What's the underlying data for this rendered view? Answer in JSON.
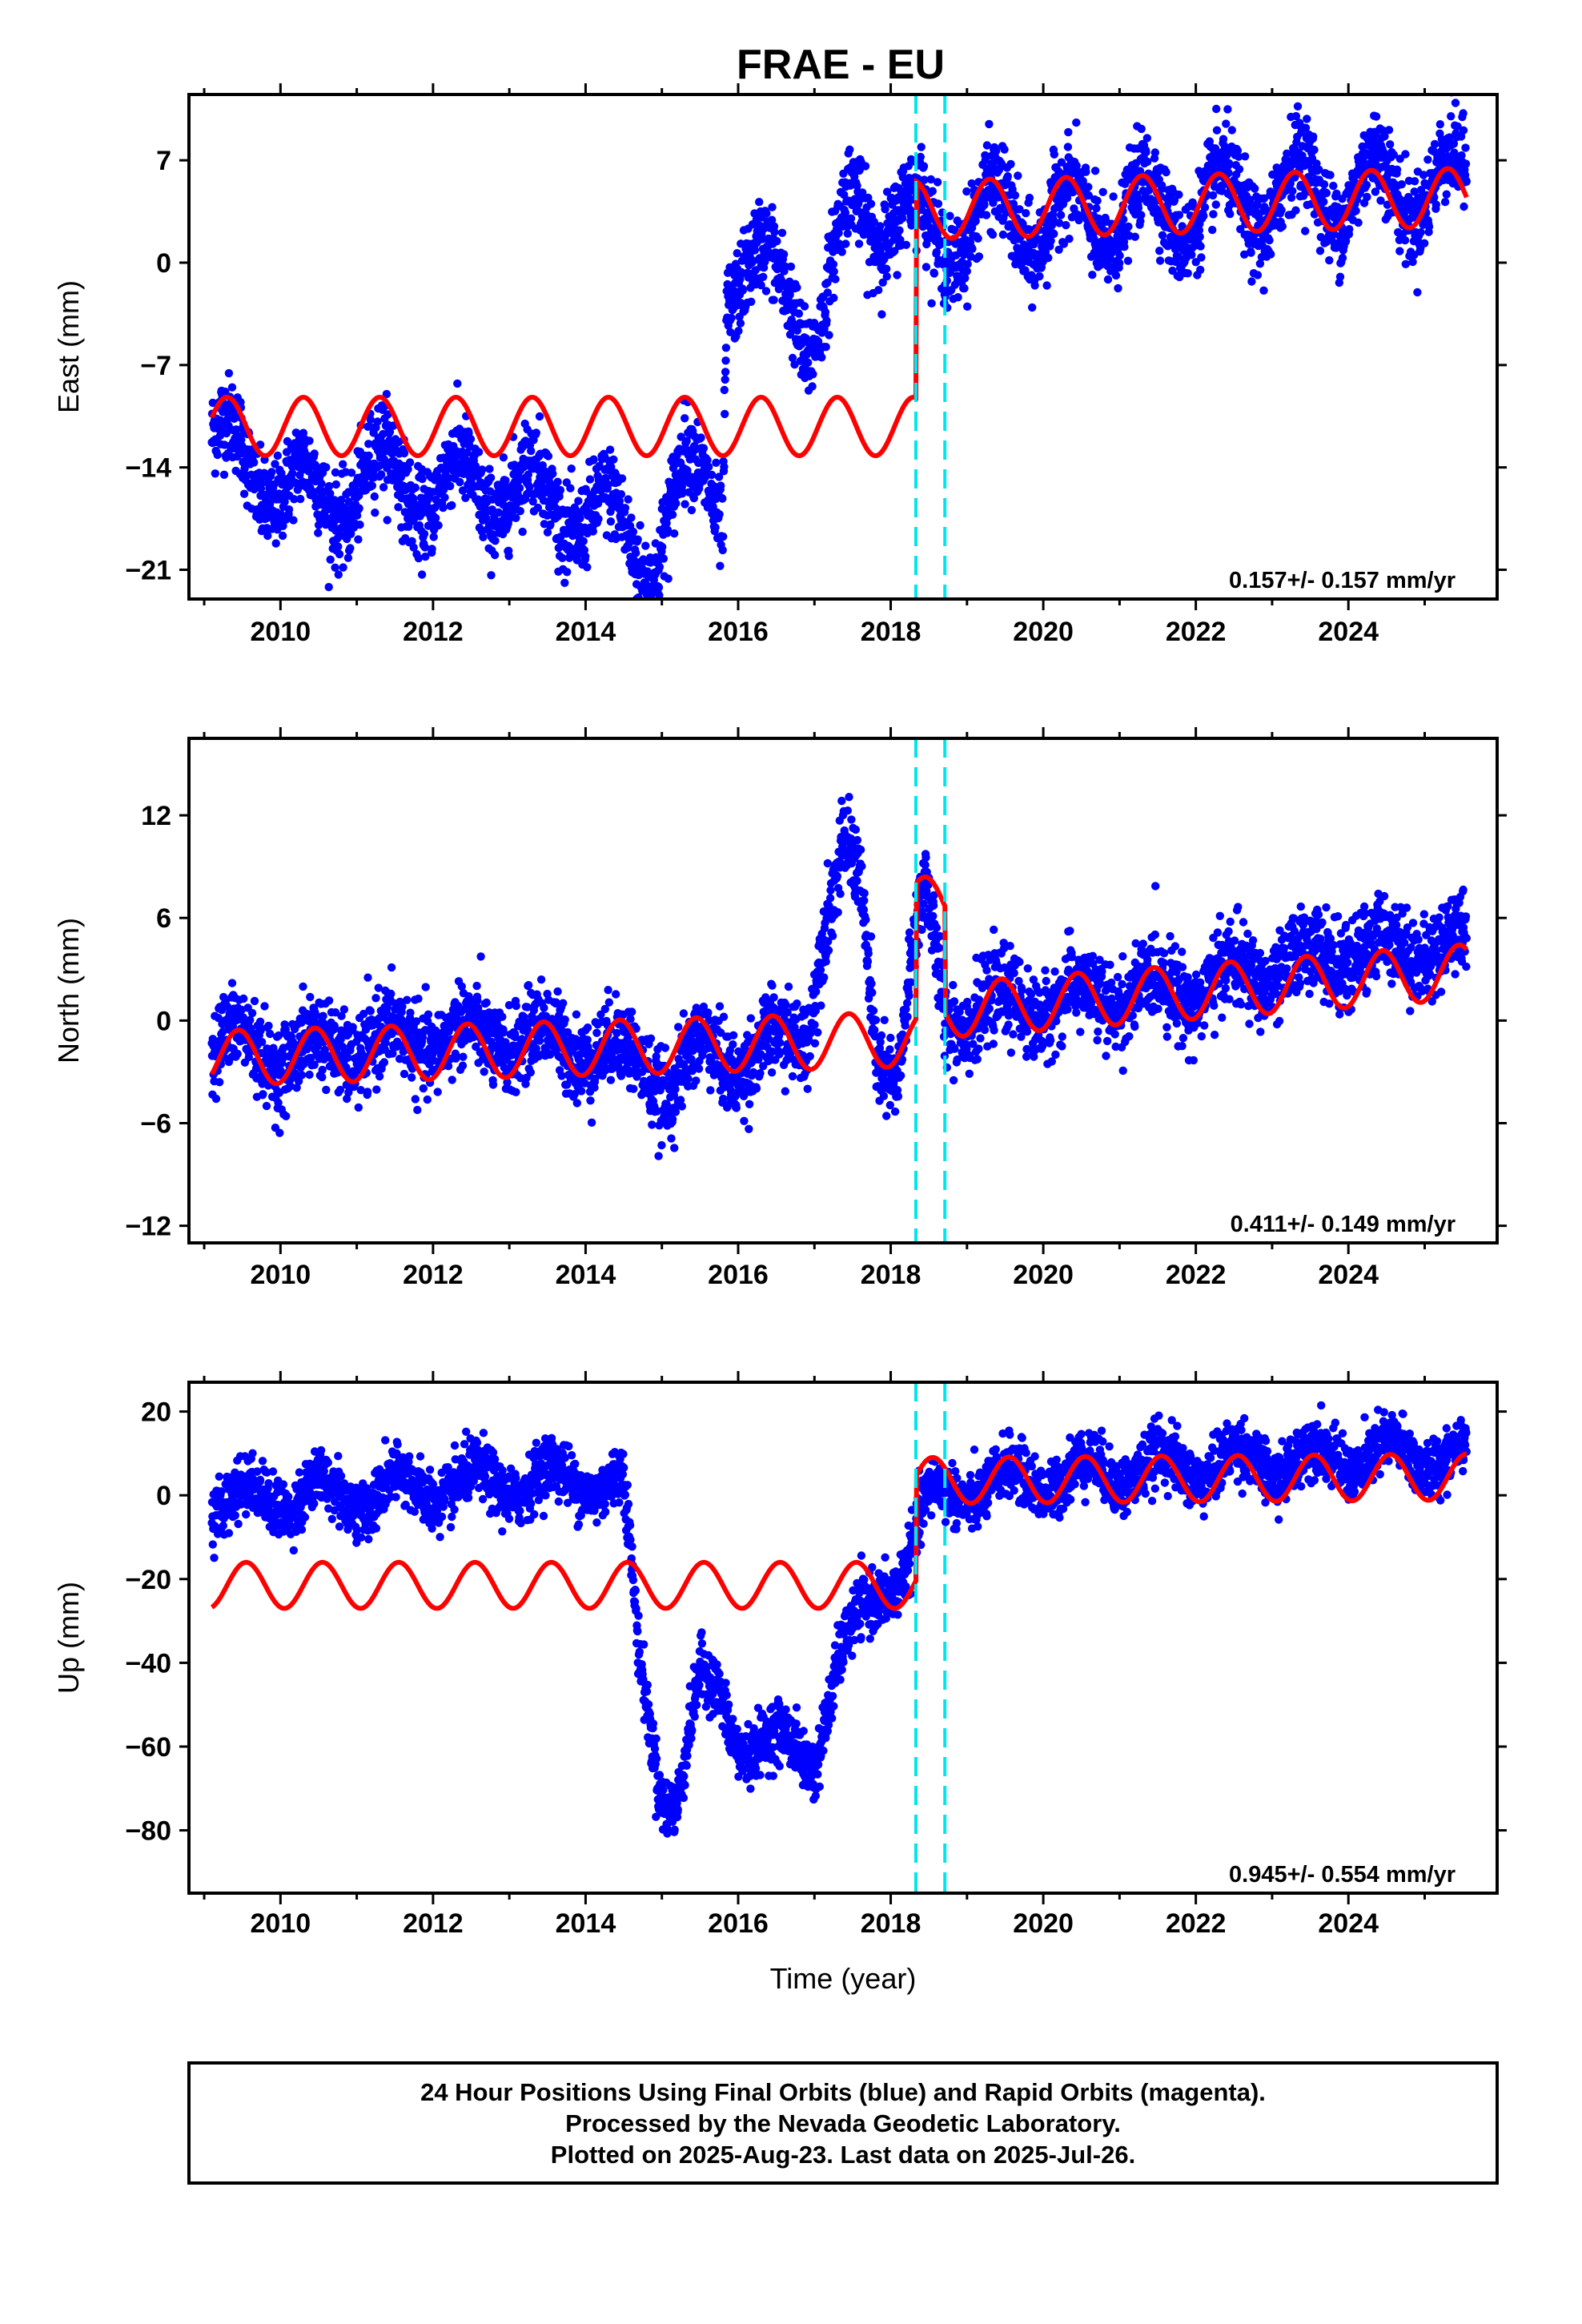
{
  "title": "FRAE - EU",
  "caption": [
    "24 Hour Positions Using Final Orbits (blue) and Rapid Orbits (magenta).",
    "Processed by the Nevada Geodetic Laboratory.",
    "Plotted on 2025-Aug-23. Last data on 2025-Jul-26."
  ],
  "colors": {
    "data": "#0000ff",
    "model": "#ff0000",
    "events": "#00e5ee",
    "frame": "#000000"
  },
  "chart_data": [
    {
      "type": "scatter",
      "ylabel": "East (mm)",
      "xlabel": "",
      "xlim": [
        2008.8,
        2025.95
      ],
      "ylim": [
        -23,
        11.5
      ],
      "xticks": [
        2010,
        2012,
        2014,
        2016,
        2018,
        2020,
        2022,
        2024
      ],
      "yticks": [
        -21,
        -14,
        -7,
        0,
        7
      ],
      "yticks_labels": [
        "−21",
        "−14",
        "−7",
        "0",
        "7"
      ],
      "rate_text": "0.157+/- 0.157 mm/yr",
      "event_lines": [
        2018.33,
        2018.71
      ],
      "observed_trend": [
        [
          2009.1,
          -12.5
        ],
        [
          2009.5,
          -13
        ],
        [
          2010.0,
          -15.5
        ],
        [
          2010.5,
          -16
        ],
        [
          2011.0,
          -15.5
        ],
        [
          2011.5,
          -14
        ],
        [
          2012.0,
          -16
        ],
        [
          2012.5,
          -15
        ],
        [
          2013.0,
          -15.5
        ],
        [
          2013.5,
          -16
        ],
        [
          2014.0,
          -17
        ],
        [
          2014.4,
          -18
        ],
        [
          2014.9,
          -20
        ],
        [
          2015.3,
          -15
        ],
        [
          2015.6,
          -14.5
        ],
        [
          2015.8,
          -16
        ],
        [
          2015.85,
          -1
        ],
        [
          2016.1,
          -1.5
        ],
        [
          2016.4,
          -0.5
        ],
        [
          2016.7,
          -1
        ],
        [
          2016.9,
          -5
        ],
        [
          2017.1,
          -5
        ],
        [
          2017.3,
          0
        ],
        [
          2017.5,
          5
        ],
        [
          2017.8,
          3.5
        ],
        [
          2018.0,
          2.5
        ],
        [
          2018.4,
          3
        ],
        [
          2018.8,
          2
        ],
        [
          2019.0,
          2
        ],
        [
          2019.5,
          4
        ],
        [
          2020.0,
          2
        ],
        [
          2020.5,
          4
        ],
        [
          2021.0,
          2.5
        ],
        [
          2021.5,
          4.5
        ],
        [
          2022.0,
          3
        ],
        [
          2022.5,
          5
        ],
        [
          2023.0,
          3.5
        ],
        [
          2023.5,
          6
        ],
        [
          2024.0,
          4
        ],
        [
          2024.5,
          6
        ],
        [
          2025.0,
          4.5
        ],
        [
          2025.55,
          6
        ]
      ],
      "observed_amplitude": 2.2,
      "observed_scatter": 1.5,
      "model": {
        "start": 2009.1,
        "end": 2025.55,
        "break": 2018.33,
        "before_offset": -11.2,
        "after_offset": 3.6,
        "amplitude": 2.0,
        "peak_phase": 0.3
      }
    },
    {
      "type": "scatter",
      "ylabel": "North (mm)",
      "xlabel": "",
      "xlim": [
        2008.8,
        2025.95
      ],
      "ylim": [
        -13,
        16.5
      ],
      "xticks": [
        2010,
        2012,
        2014,
        2016,
        2018,
        2020,
        2022,
        2024
      ],
      "yticks": [
        -12,
        -6,
        0,
        6,
        12
      ],
      "yticks_labels": [
        "−12",
        "−6",
        "0",
        "6",
        "12"
      ],
      "rate_text": "0.411+/- 0.149 mm/yr",
      "event_lines": [
        2018.33,
        2018.71
      ],
      "observed_trend": [
        [
          2009.1,
          -1
        ],
        [
          2010.0,
          -2
        ],
        [
          2011.0,
          -1.5
        ],
        [
          2012.0,
          -1
        ],
        [
          2013.0,
          -1
        ],
        [
          2014.0,
          -1.5
        ],
        [
          2014.8,
          -2.5
        ],
        [
          2015.1,
          -4
        ],
        [
          2015.6,
          -1.5
        ],
        [
          2016.0,
          -2.5
        ],
        [
          2016.5,
          -1.5
        ],
        [
          2016.9,
          -0.5
        ],
        [
          2017.1,
          5
        ],
        [
          2017.4,
          9.5
        ],
        [
          2017.6,
          8
        ],
        [
          2017.8,
          -1.5
        ],
        [
          2018.1,
          -3
        ],
        [
          2018.3,
          4
        ],
        [
          2018.45,
          7.5
        ],
        [
          2018.7,
          0.5
        ],
        [
          2019.0,
          0.5
        ],
        [
          2020.0,
          1
        ],
        [
          2021.0,
          1.5
        ],
        [
          2022.0,
          2
        ],
        [
          2023.0,
          3
        ],
        [
          2024.0,
          4
        ],
        [
          2025.55,
          4.5
        ]
      ],
      "observed_amplitude": 1.0,
      "observed_scatter": 1.2,
      "model": {
        "start": 2009.1,
        "end": 2025.55,
        "break": 2018.33,
        "break_end": 2018.71,
        "before_offset": -2.2,
        "after_offset": 0.6,
        "amplitude": 1.6,
        "peak_phase": 0.45
      }
    },
    {
      "type": "scatter",
      "ylabel": "Up (mm)",
      "xlabel": "Time (year)",
      "xlim": [
        2008.8,
        2025.95
      ],
      "ylim": [
        -95,
        27
      ],
      "xticks": [
        2010,
        2012,
        2014,
        2016,
        2018,
        2020,
        2022,
        2024
      ],
      "yticks": [
        -80,
        -60,
        -40,
        -20,
        0,
        20
      ],
      "yticks_labels": [
        "−80",
        "−60",
        "−40",
        "−20",
        "0",
        "20"
      ],
      "rate_text": "0.945+/- 0.554 mm/yr",
      "event_lines": [
        2018.33,
        2018.71
      ],
      "observed_trend": [
        [
          2009.1,
          -2
        ],
        [
          2010.0,
          0
        ],
        [
          2011.0,
          0
        ],
        [
          2012.0,
          2
        ],
        [
          2013.0,
          3
        ],
        [
          2014.0,
          4
        ],
        [
          2014.5,
          2
        ],
        [
          2014.7,
          -40
        ],
        [
          2015.0,
          -70
        ],
        [
          2015.2,
          -72
        ],
        [
          2015.5,
          -45
        ],
        [
          2015.8,
          -50
        ],
        [
          2016.0,
          -58
        ],
        [
          2016.5,
          -60
        ],
        [
          2017.0,
          -62
        ],
        [
          2017.3,
          -40
        ],
        [
          2017.8,
          -25
        ],
        [
          2018.2,
          -15
        ],
        [
          2018.5,
          -2
        ],
        [
          2019.0,
          2
        ],
        [
          2020.0,
          4
        ],
        [
          2021.0,
          6
        ],
        [
          2022.0,
          7
        ],
        [
          2023.0,
          8
        ],
        [
          2024.0,
          9
        ],
        [
          2025.55,
          10
        ]
      ],
      "observed_amplitude": 4.0,
      "observed_scatter": 3.5,
      "model": {
        "start": 2009.1,
        "end": 2025.55,
        "break": 2018.33,
        "before_offset": -21.5,
        "after_offset": 3.5,
        "amplitude": 5.5,
        "peak_phase": 0.55
      }
    }
  ]
}
